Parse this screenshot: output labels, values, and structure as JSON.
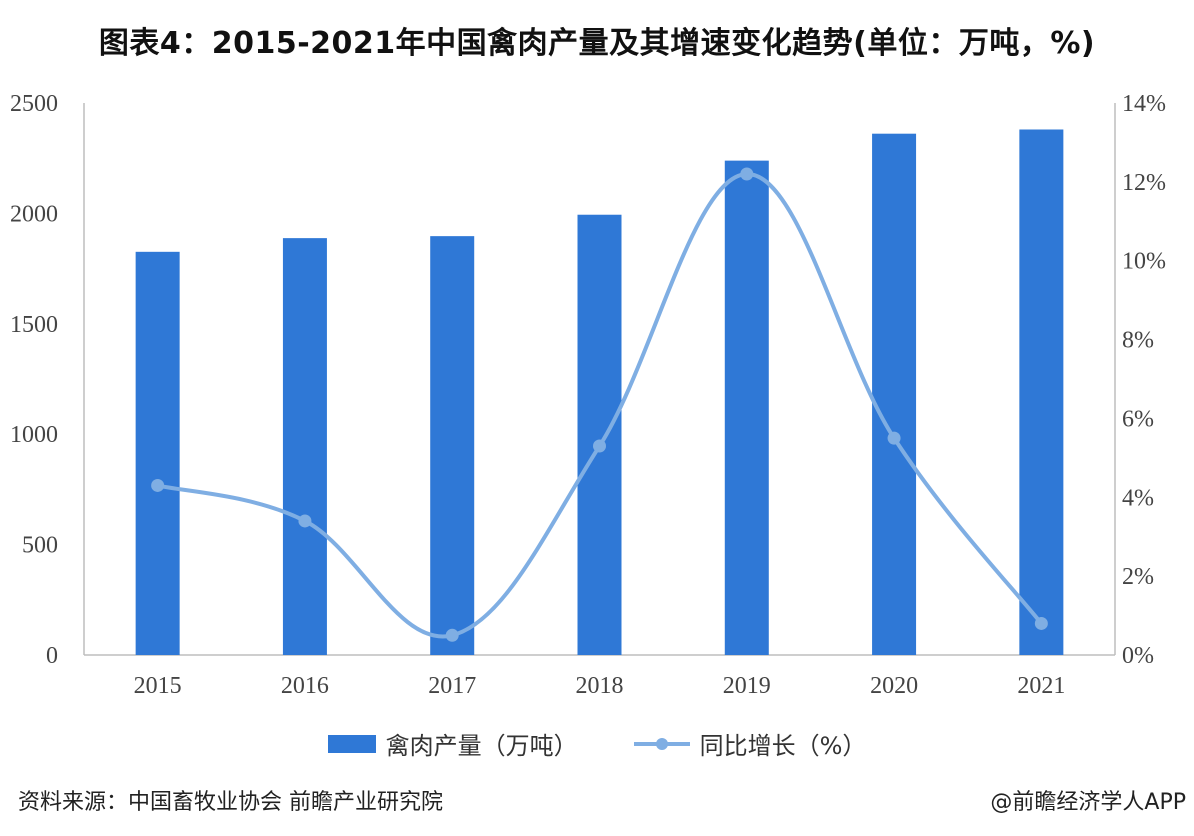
{
  "title": "图表4：2015-2021年中国禽肉产量及其增速变化趋势(单位：万吨，%)",
  "footer": {
    "source": "资料来源：中国畜牧业协会 前瞻产业研究院",
    "credit": "@前瞻经济学人APP"
  },
  "colors": {
    "bar": "#2f78d6",
    "line": "#7faee3",
    "axis": "#bdbdbd"
  },
  "chart_data": {
    "type": "bar",
    "categories": [
      "2015",
      "2016",
      "2017",
      "2018",
      "2019",
      "2020",
      "2021"
    ],
    "series": [
      {
        "name": "禽肉产量（万吨）",
        "type": "bar",
        "axis": "left",
        "values": [
          1826,
          1888,
          1897,
          1994,
          2239,
          2361,
          2380
        ]
      },
      {
        "name": "同比增长（%）",
        "type": "line",
        "axis": "right",
        "values": [
          4.3,
          3.4,
          0.5,
          5.3,
          12.2,
          5.5,
          0.8
        ]
      }
    ],
    "ylim_left": [
      0,
      2500
    ],
    "yticks_left": [
      "0",
      "500",
      "1000",
      "1500",
      "2000",
      "2500"
    ],
    "ylim_right": [
      0,
      14
    ],
    "yticks_right": [
      "0%",
      "2%",
      "4%",
      "6%",
      "8%",
      "10%",
      "12%",
      "14%"
    ],
    "legend_position": "bottom",
    "grid": false
  }
}
